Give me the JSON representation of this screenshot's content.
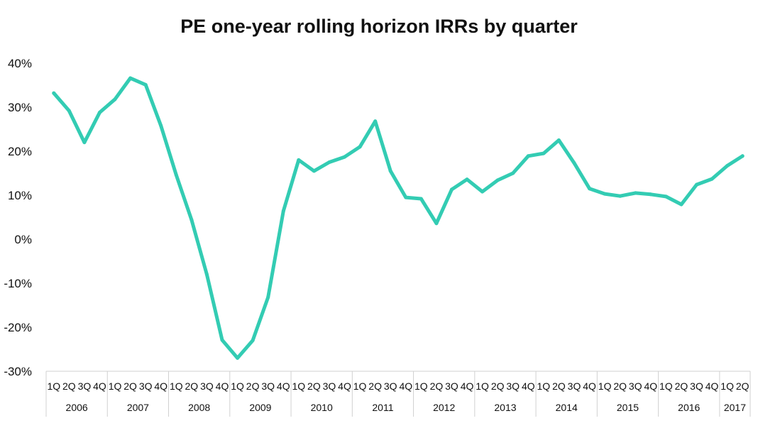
{
  "chart_data": {
    "type": "line",
    "title": "PE one-year rolling horizon IRRs by quarter",
    "xlabel": "",
    "ylabel": "",
    "ylim": [
      -30,
      40
    ],
    "yticks": [
      "40%",
      "30%",
      "20%",
      "10%",
      "0%",
      "-10%",
      "-20%",
      "-30%"
    ],
    "ytick_values": [
      40,
      30,
      20,
      10,
      0,
      -10,
      -20,
      -30
    ],
    "grid": false,
    "legend": "none",
    "color": "#33CCB3",
    "years": [
      "2006",
      "2007",
      "2008",
      "2009",
      "2010",
      "2011",
      "2012",
      "2013",
      "2014",
      "2015",
      "2016",
      "2017"
    ],
    "quarters_per_year": [
      [
        "1Q",
        "2Q",
        "3Q",
        "4Q"
      ],
      [
        "1Q",
        "2Q",
        "3Q",
        "4Q"
      ],
      [
        "1Q",
        "2Q",
        "3Q",
        "4Q"
      ],
      [
        "1Q",
        "2Q",
        "3Q",
        "4Q"
      ],
      [
        "1Q",
        "2Q",
        "3Q",
        "4Q"
      ],
      [
        "1Q",
        "2Q",
        "3Q",
        "4Q"
      ],
      [
        "1Q",
        "2Q",
        "3Q",
        "4Q"
      ],
      [
        "1Q",
        "2Q",
        "3Q",
        "4Q"
      ],
      [
        "1Q",
        "2Q",
        "3Q",
        "4Q"
      ],
      [
        "1Q",
        "2Q",
        "3Q",
        "4Q"
      ],
      [
        "1Q",
        "2Q",
        "3Q",
        "4Q"
      ],
      [
        "1Q",
        "2Q"
      ]
    ],
    "series": [
      {
        "values": [
          33.2,
          29.2,
          22.0,
          28.8,
          31.8,
          36.6,
          35.1,
          25.8,
          14.6,
          4.4,
          -8.0,
          -22.9,
          -27.0,
          -23.0,
          -13.2,
          6.4,
          18.0,
          15.5,
          17.5,
          18.7,
          21.0,
          26.8,
          15.5,
          9.5,
          9.2,
          3.6,
          11.3,
          13.6,
          10.8,
          13.4,
          15.0,
          18.9,
          19.5,
          22.5,
          17.3,
          11.5,
          10.3,
          9.8,
          10.5,
          10.2,
          9.7,
          7.9,
          12.4,
          13.7,
          16.7,
          18.9
        ]
      }
    ]
  }
}
